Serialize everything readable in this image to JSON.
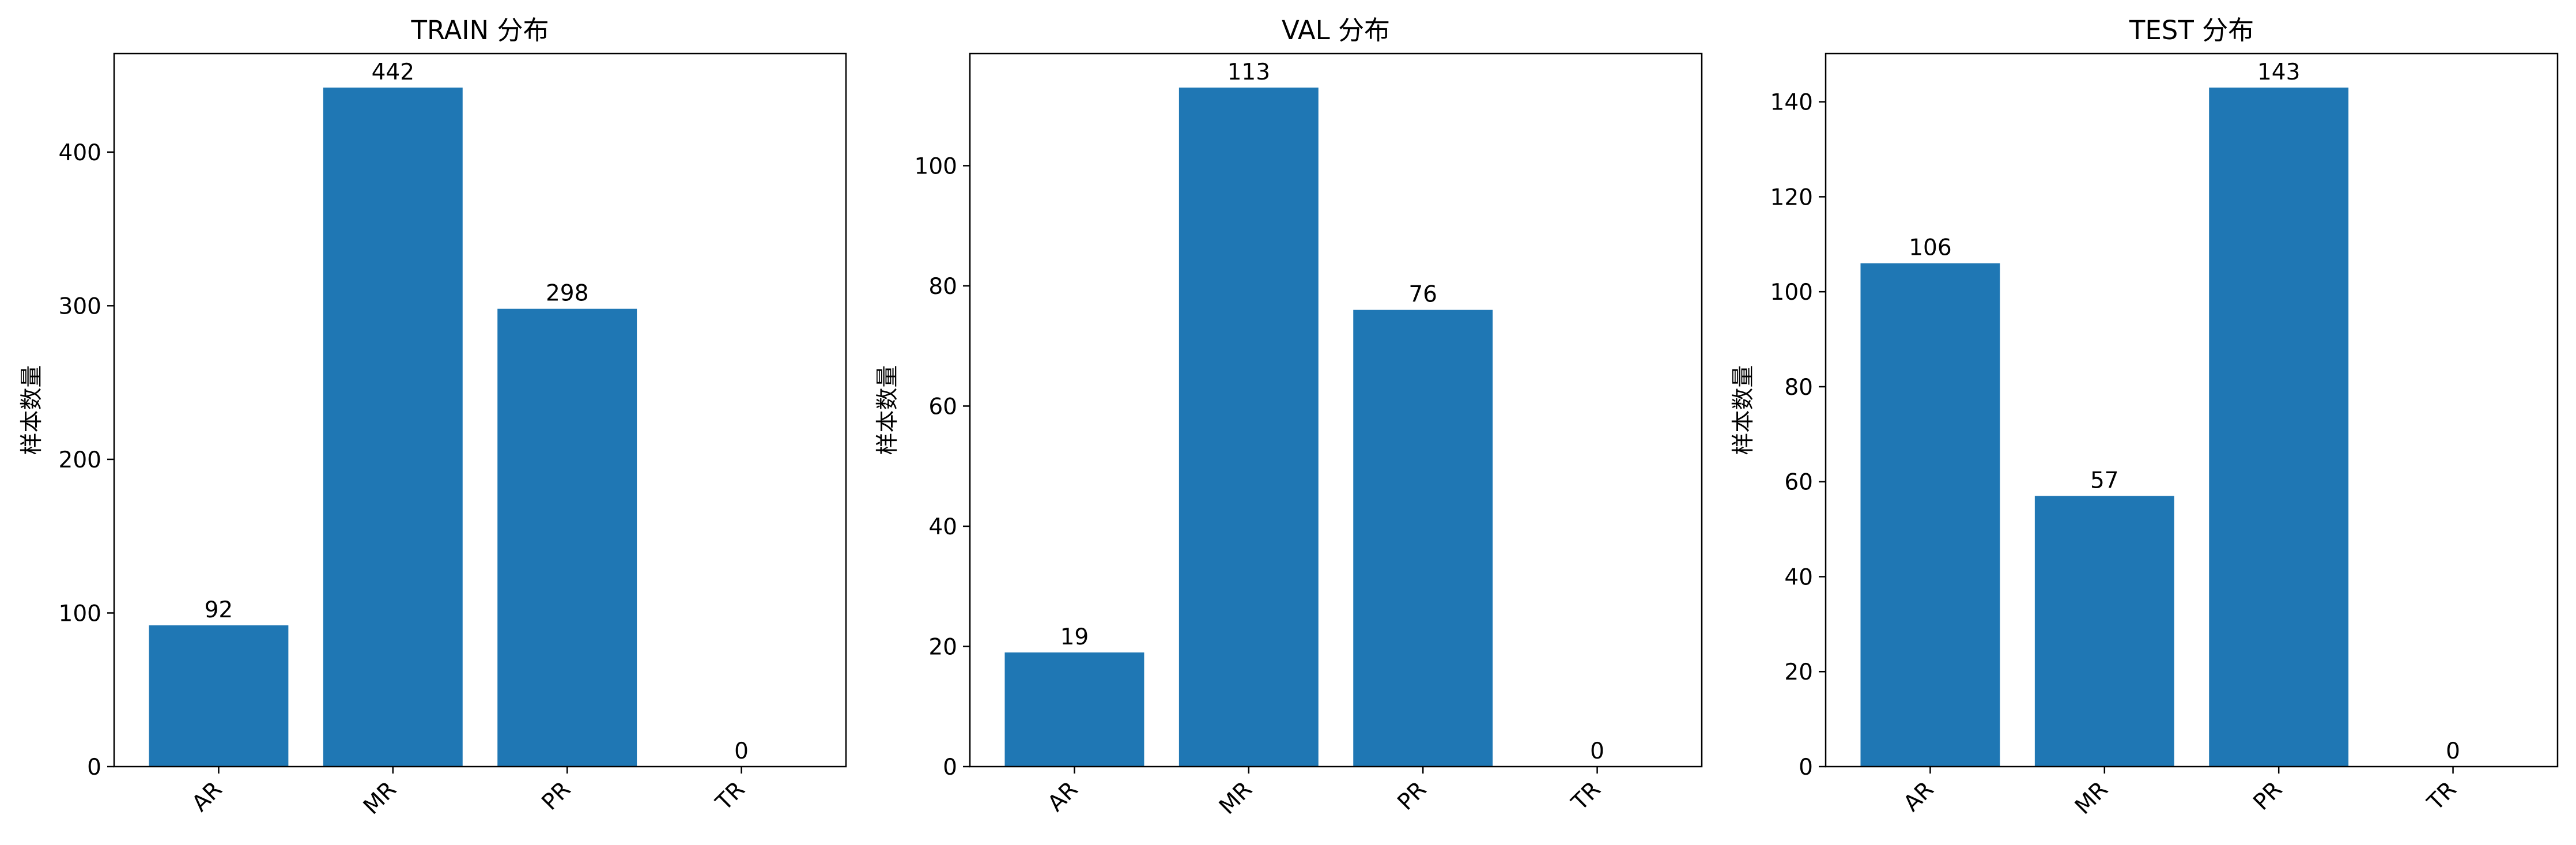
{
  "chart_data": [
    {
      "type": "bar",
      "title": "TRAIN 分布",
      "xlabel": "",
      "ylabel": "样本数量",
      "categories": [
        "AR",
        "MR",
        "PR",
        "TR"
      ],
      "values": [
        92,
        442,
        298,
        0
      ],
      "data_labels": [
        "92",
        "442",
        "298",
        "0"
      ],
      "yticks": [
        0,
        100,
        200,
        300,
        400
      ],
      "ylim": [
        0,
        464.1
      ],
      "grid": false,
      "bar_color": "#1f77b4"
    },
    {
      "type": "bar",
      "title": "VAL 分布",
      "xlabel": "",
      "ylabel": "样本数量",
      "categories": [
        "AR",
        "MR",
        "PR",
        "TR"
      ],
      "values": [
        19,
        113,
        76,
        0
      ],
      "data_labels": [
        "19",
        "113",
        "76",
        "0"
      ],
      "yticks": [
        0,
        20,
        40,
        60,
        80,
        100
      ],
      "ylim": [
        0,
        118.65
      ],
      "grid": false,
      "bar_color": "#1f77b4"
    },
    {
      "type": "bar",
      "title": "TEST 分布",
      "xlabel": "",
      "ylabel": "样本数量",
      "categories": [
        "AR",
        "MR",
        "PR",
        "TR"
      ],
      "values": [
        106,
        57,
        143,
        0
      ],
      "data_labels": [
        "106",
        "57",
        "143",
        "0"
      ],
      "yticks": [
        0,
        20,
        40,
        60,
        80,
        100,
        120,
        140
      ],
      "ylim": [
        0,
        150.15
      ],
      "grid": false,
      "bar_color": "#1f77b4"
    }
  ]
}
